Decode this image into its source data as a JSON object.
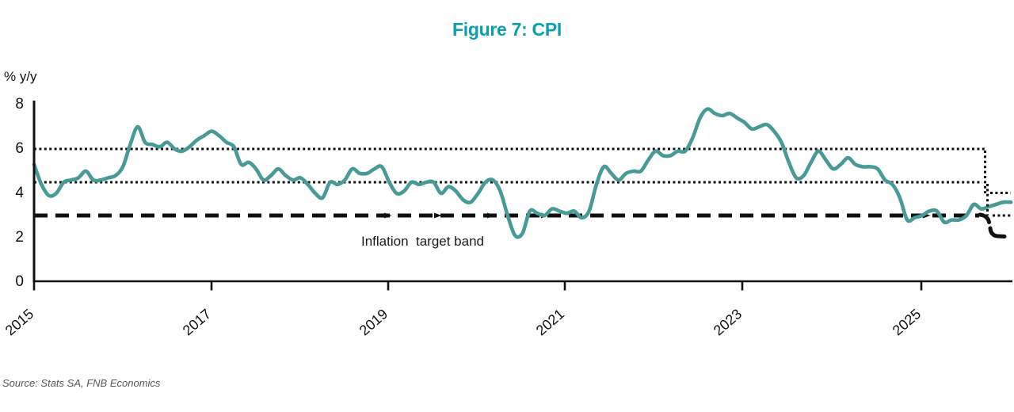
{
  "title": "Figure 7: CPI",
  "y_axis_label": "% y/y",
  "annotation": "Inflation  target band",
  "source": "Source: Stats SA, FNB Economics",
  "colors": {
    "title_teal": "#0aa0aa",
    "line_teal": "#489a96",
    "band_black": "#111111"
  },
  "chart_data": {
    "type": "line",
    "title": "Figure 7: CPI",
    "ylabel": "% y/y",
    "ylim": [
      0,
      8
    ],
    "y_ticks": [
      8,
      6,
      4,
      2,
      0
    ],
    "x_tick_labels": [
      "2015",
      "2017",
      "2019",
      "2021",
      "2023",
      "2025"
    ],
    "grid": false,
    "legend": "none",
    "series": [
      {
        "name": "CPI % y/y",
        "frequency": "monthly",
        "values": [
          5.3,
          4.4,
          3.9,
          4.0,
          4.5,
          4.6,
          4.7,
          5.0,
          4.6,
          4.6,
          4.7,
          4.8,
          5.2,
          6.2,
          7.0,
          6.3,
          6.2,
          6.1,
          6.3,
          6.0,
          5.9,
          6.1,
          6.4,
          6.6,
          6.8,
          6.6,
          6.3,
          6.1,
          5.3,
          5.4,
          5.1,
          4.6,
          4.8,
          5.1,
          4.8,
          4.6,
          4.7,
          4.4,
          4.0,
          3.8,
          4.5,
          4.4,
          4.6,
          5.1,
          4.9,
          4.9,
          5.1,
          5.2,
          4.5,
          4.0,
          4.1,
          4.5,
          4.4,
          4.5,
          4.5,
          4.0,
          4.3,
          4.1,
          3.7,
          3.6,
          4.0,
          4.5,
          4.6,
          4.1,
          3.0,
          2.1,
          2.2,
          3.2,
          3.1,
          3.0,
          3.3,
          3.2,
          3.1,
          3.2,
          2.9,
          3.2,
          4.4,
          5.2,
          4.9,
          4.6,
          4.9,
          5.0,
          5.0,
          5.5,
          5.9,
          5.7,
          5.7,
          5.9,
          5.9,
          6.5,
          7.4,
          7.8,
          7.6,
          7.5,
          7.6,
          7.4,
          7.2,
          6.9,
          7.0,
          7.1,
          6.8,
          6.3,
          5.4,
          4.7,
          4.8,
          5.4,
          5.9,
          5.5,
          5.1,
          5.3,
          5.6,
          5.3,
          5.2,
          5.2,
          5.1,
          4.6,
          4.4,
          3.8,
          2.8,
          2.9,
          3.0,
          3.2,
          3.2,
          2.7,
          2.8,
          2.8,
          3.0,
          3.5,
          3.3,
          3.4,
          3.5,
          3.6,
          3.6
        ]
      }
    ],
    "reference_lines": [
      {
        "name": "target-band-upper",
        "style": "dotted",
        "value": 6.0,
        "end_value": 4.0
      },
      {
        "name": "target-band-midpoint",
        "style": "dotted",
        "value": 4.5,
        "end_value": 3.0
      },
      {
        "name": "target-dashed-lower",
        "style": "dashed",
        "value": 3.0,
        "end_value": 2.0
      }
    ],
    "annotation": "Inflation  target band"
  }
}
